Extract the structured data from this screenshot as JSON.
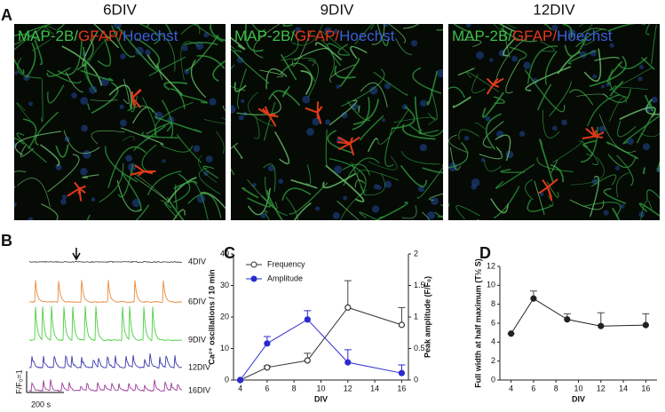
{
  "panels": {
    "A": {
      "label": "A",
      "images": [
        {
          "title": "6DIV",
          "stain": [
            "MAP-2B/",
            "GFAP/",
            "Hoechst"
          ]
        },
        {
          "title": "9DIV",
          "stain": [
            "MAP-2B/",
            "GFAP/",
            "Hoechst"
          ]
        },
        {
          "title": "12DIV",
          "stain": [
            "MAP-2B/",
            "GFAP/",
            "Hoechst"
          ]
        }
      ]
    },
    "B": {
      "label": "B",
      "traces": [
        {
          "name": "4DIV",
          "color": "#555555"
        },
        {
          "name": "6DIV",
          "color": "#e8883a"
        },
        {
          "name": "9DIV",
          "color": "#4ccf3f"
        },
        {
          "name": "12DIV",
          "color": "#3b3bb0"
        },
        {
          "name": "16DIV",
          "color": "#9a3a9a"
        }
      ],
      "scale_y": "F/F₀=1",
      "scale_x": "200 s"
    },
    "C": {
      "label": "C"
    },
    "D": {
      "label": "D"
    }
  },
  "chart_data": [
    {
      "type": "line",
      "x": [
        4,
        6,
        9,
        12,
        16
      ],
      "xlabel": "DIV",
      "ylabel": "Ca²⁺ oscillations / 10 min",
      "y2label": "Peak amplitude (F/F₀)",
      "xlim": [
        3.5,
        16.5
      ],
      "xticks": [
        4,
        6,
        8,
        10,
        12,
        14,
        16
      ],
      "ylim": [
        0,
        40
      ],
      "yticks": [
        0,
        10,
        20,
        30,
        40
      ],
      "y2lim": [
        0,
        2
      ],
      "y2ticks": [
        0,
        0.5,
        1,
        1.5,
        2
      ],
      "legend": "upper left",
      "series": [
        {
          "name": "Frequency",
          "color": "#333333",
          "marker": "open",
          "values": [
            0,
            4,
            6.2,
            23,
            17.5
          ],
          "errors": [
            0,
            0.5,
            2.3,
            8.5,
            5.5
          ]
        },
        {
          "name": "Amplitude",
          "color": "#2a2ad0",
          "marker": "filled",
          "axis": "y2",
          "values": [
            0,
            0.58,
            0.96,
            0.28,
            0.11
          ],
          "errors": [
            0,
            0.11,
            0.14,
            0.2,
            0.13
          ]
        }
      ]
    },
    {
      "type": "line",
      "x": [
        4,
        6,
        9,
        12,
        16
      ],
      "xlabel": "DIV",
      "ylabel": "Full width at half maximum (T½ S)",
      "xlim": [
        3,
        17
      ],
      "xticks": [
        4,
        6,
        8,
        10,
        12,
        14,
        16
      ],
      "ylim": [
        0,
        12
      ],
      "yticks": [
        0,
        2,
        4,
        6,
        8,
        10,
        12
      ],
      "series": [
        {
          "color": "#222222",
          "marker": "filled",
          "values": [
            4.9,
            8.6,
            6.4,
            5.7,
            5.8
          ],
          "errors": [
            0,
            0.8,
            0.6,
            1.4,
            1.2
          ]
        }
      ]
    }
  ]
}
